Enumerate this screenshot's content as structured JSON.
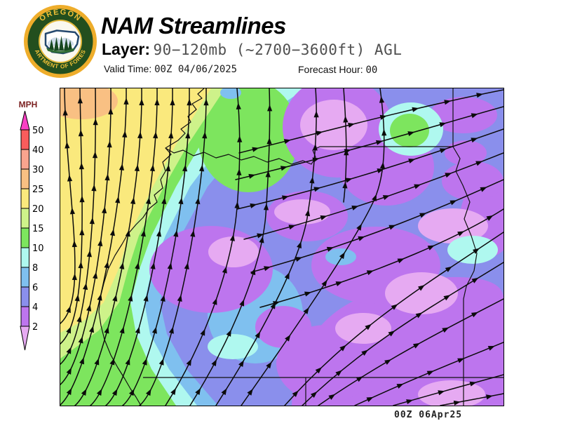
{
  "header": {
    "title": "NAM Streamlines",
    "layer_label": "Layer:",
    "layer_value": "90−120mb (~2700−3600ft) AGL",
    "valid_time_label": "Valid Time:",
    "valid_time_value": "00Z 04/06/2025",
    "forecast_hour_label": "Forecast Hour:",
    "forecast_hour_value": "00"
  },
  "logo": {
    "top_text": "OREGON",
    "arc_text": "DEPARTMENT OF FORESTRY",
    "ring_color": "#234f1e",
    "gold_color": "#eead2b"
  },
  "legend": {
    "units_label": "MPH",
    "units_color": "#7b2121",
    "above_max_color": "#fa3fc4",
    "segments": [
      {
        "label": "50",
        "color": "#f95c5c"
      },
      {
        "label": "40",
        "color": "#f9a48e"
      },
      {
        "label": "30",
        "color": "#f9c083"
      },
      {
        "label": "25",
        "color": "#fae97d"
      },
      {
        "label": "20",
        "color": "#cef28a"
      },
      {
        "label": "15",
        "color": "#7de55e"
      },
      {
        "label": "10",
        "color": "#aff8ef"
      },
      {
        "label": "8",
        "color": "#7fc0ef"
      },
      {
        "label": "6",
        "color": "#8a8fec"
      },
      {
        "label": "4",
        "color": "#bd75ee"
      },
      {
        "label": "2",
        "color": "#e6aaf2",
        "arrow_down": true
      }
    ]
  },
  "map": {
    "caption": "00Z 06Apr25"
  }
}
